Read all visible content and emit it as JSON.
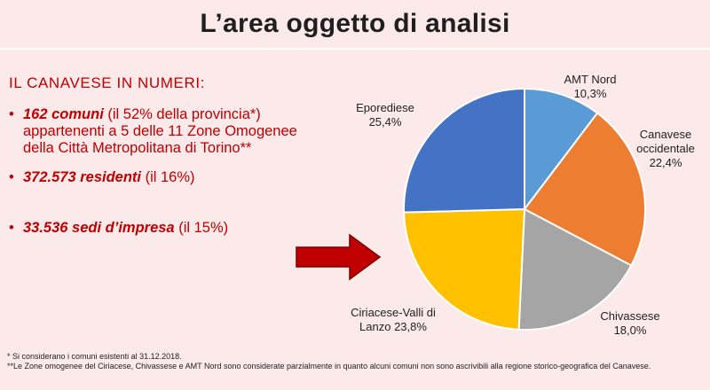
{
  "title": "L’area oggetto di analisi",
  "heading": "IL CANAVESE IN NUMERI:",
  "bullets": [
    {
      "bold": "162 comuni",
      "rest": " (il 52% della provincia*) appartenenti a 5 delle 11 Zone Omogenee della Città Metropolitana di Torino**"
    },
    {
      "bold": "372.573 residenti",
      "rest": " (il 16%)"
    },
    {
      "bold": "33.536 sedi d’impresa",
      "rest": " (il 15%)"
    }
  ],
  "footnotes": [
    "* Si considerano i comuni esistenti al 31.12.2018.",
    "**Le Zone omogenee del Ciriacese, Chivassese e AMT Nord sono considerate parzialmente in quanto alcuni comuni non sono ascrivibili alla regione storico-geografica del Canavese."
  ],
  "colors": {
    "arrow": "#c00000",
    "text_red": "#c00000"
  },
  "chart_data": {
    "type": "pie",
    "title": "",
    "start": "12 o'clock",
    "direction": "clockwise",
    "legend": "none (data labels outside slices)",
    "slices": [
      {
        "label": "AMT Nord",
        "value_label": "10,3%",
        "value": 10.3,
        "color": "#5b9bd5"
      },
      {
        "label": "Canavese occidentale",
        "value_label": "22,4%",
        "value": 22.4,
        "color": "#ed7d31"
      },
      {
        "label": "Chivassese",
        "value_label": "18,0%",
        "value": 18.0,
        "color": "#a5a5a5"
      },
      {
        "label": "Ciriacese-Valli di Lanzo",
        "value_label": "23,8%",
        "value": 23.8,
        "color": "#ffc000"
      },
      {
        "label": "Eporediese",
        "value_label": "25,4%",
        "value": 25.4,
        "color": "#4472c4"
      }
    ]
  }
}
